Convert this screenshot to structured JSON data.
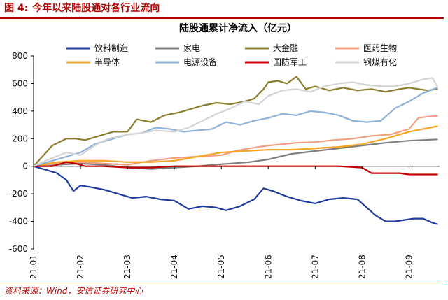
{
  "header": {
    "figure_number": "图 4:",
    "figure_title": "今年以来陆股通对各行业流向"
  },
  "source": "资料来源：Wind，安信证券研究中心",
  "colors": {
    "accent": "#b30000"
  },
  "chart_data": {
    "type": "line",
    "title": "陆股通累计净流入（亿元）",
    "ylim": [
      -600,
      800
    ],
    "yticks": [
      -600,
      -400,
      -200,
      0,
      200,
      400,
      600,
      800
    ],
    "xlim": [
      0,
      8.65
    ],
    "xticks": [
      {
        "label": "21-01",
        "pos": 0
      },
      {
        "label": "21-02",
        "pos": 1
      },
      {
        "label": "21-03",
        "pos": 2
      },
      {
        "label": "21-04",
        "pos": 3
      },
      {
        "label": "21-05",
        "pos": 4
      },
      {
        "label": "21-06",
        "pos": 5
      },
      {
        "label": "21-07",
        "pos": 6
      },
      {
        "label": "21-08",
        "pos": 7
      },
      {
        "label": "21-09",
        "pos": 8
      }
    ],
    "series": [
      {
        "name": "饮料制造",
        "color": "#1f3c9e",
        "x": [
          0,
          0.3,
          0.5,
          0.7,
          0.85,
          1.0,
          1.2,
          1.5,
          1.8,
          2.1,
          2.4,
          2.7,
          3.0,
          3.3,
          3.6,
          3.9,
          4.1,
          4.4,
          4.7,
          4.9,
          5.1,
          5.4,
          5.7,
          6.0,
          6.3,
          6.6,
          6.9,
          7.1,
          7.3,
          7.5,
          7.7,
          7.9,
          8.1,
          8.3,
          8.5,
          8.6
        ],
        "values": [
          0,
          -30,
          -50,
          -100,
          -180,
          -140,
          -150,
          -170,
          -200,
          -230,
          -220,
          -240,
          -250,
          -310,
          -290,
          -300,
          -320,
          -290,
          -240,
          -160,
          -180,
          -220,
          -250,
          -270,
          -240,
          -230,
          -240,
          -300,
          -360,
          -400,
          -400,
          -390,
          -380,
          -380,
          -410,
          -420
        ]
      },
      {
        "name": "家电",
        "color": "#7f7f7f",
        "x": [
          0,
          0.5,
          1.0,
          1.5,
          2.0,
          2.5,
          3.0,
          3.5,
          3.8,
          4.2,
          4.6,
          5.0,
          5.5,
          6.0,
          6.5,
          7.0,
          7.5,
          8.0,
          8.3,
          8.6
        ],
        "values": [
          0,
          10,
          20,
          10,
          -10,
          -20,
          -10,
          0,
          10,
          20,
          30,
          50,
          90,
          110,
          130,
          150,
          170,
          185,
          190,
          195
        ]
      },
      {
        "name": "大金融",
        "color": "#8a7f2e",
        "x": [
          0,
          0.4,
          0.7,
          0.9,
          1.1,
          1.4,
          1.7,
          2.0,
          2.2,
          2.5,
          2.8,
          3.1,
          3.4,
          3.6,
          3.9,
          4.2,
          4.5,
          4.7,
          4.9,
          5.0,
          5.2,
          5.4,
          5.6,
          5.8,
          6.0,
          6.3,
          6.6,
          6.9,
          7.2,
          7.5,
          7.8,
          8.0,
          8.2,
          8.4,
          8.6
        ],
        "values": [
          0,
          150,
          200,
          200,
          190,
          220,
          250,
          250,
          340,
          320,
          370,
          390,
          420,
          440,
          460,
          450,
          470,
          490,
          560,
          610,
          620,
          600,
          650,
          560,
          580,
          550,
          570,
          550,
          560,
          540,
          560,
          570,
          560,
          550,
          560
        ]
      },
      {
        "name": "医药生物",
        "color": "#f0a080",
        "x": [
          0,
          0.5,
          1.0,
          1.5,
          2.0,
          2.5,
          3.0,
          3.5,
          4.0,
          4.3,
          4.6,
          5.0,
          5.3,
          5.6,
          6.0,
          6.4,
          6.8,
          7.2,
          7.6,
          8.0,
          8.2,
          8.4,
          8.6
        ],
        "values": [
          0,
          20,
          30,
          20,
          10,
          40,
          60,
          70,
          80,
          110,
          130,
          150,
          160,
          170,
          175,
          190,
          200,
          220,
          230,
          270,
          350,
          360,
          365
        ]
      },
      {
        "name": "半导体",
        "color": "#f5a623",
        "x": [
          0,
          0.5,
          1.0,
          1.5,
          2.0,
          2.5,
          3.0,
          3.5,
          4.0,
          4.5,
          5.0,
          5.5,
          6.0,
          6.5,
          7.0,
          7.5,
          8.0,
          8.3,
          8.6
        ],
        "values": [
          0,
          30,
          40,
          40,
          30,
          30,
          40,
          70,
          100,
          110,
          120,
          120,
          130,
          140,
          160,
          200,
          250,
          270,
          290
        ]
      },
      {
        "name": "电源设备",
        "color": "#8fb3d9",
        "x": [
          0,
          0.5,
          1.0,
          1.3,
          1.6,
          2.0,
          2.3,
          2.6,
          2.9,
          3.2,
          3.5,
          3.8,
          4.1,
          4.4,
          4.7,
          5.0,
          5.3,
          5.6,
          5.9,
          6.2,
          6.5,
          6.8,
          7.1,
          7.4,
          7.7,
          8.0,
          8.3,
          8.6
        ],
        "values": [
          0,
          50,
          100,
          160,
          190,
          230,
          240,
          280,
          270,
          250,
          260,
          270,
          320,
          300,
          330,
          350,
          380,
          370,
          400,
          390,
          370,
          330,
          320,
          330,
          420,
          470,
          530,
          570
        ]
      },
      {
        "name": "国防军工",
        "color": "#c00000",
        "x": [
          0,
          0.4,
          0.7,
          0.9,
          1.1,
          1.5,
          2.0,
          2.5,
          3.0,
          3.5,
          4.0,
          4.5,
          5.0,
          5.5,
          6.0,
          6.5,
          7.0,
          7.2,
          7.5,
          7.8,
          8.0,
          8.3,
          8.6
        ],
        "values": [
          0,
          0,
          30,
          20,
          0,
          0,
          -10,
          -10,
          0,
          0,
          0,
          0,
          0,
          0,
          0,
          0,
          -10,
          -50,
          -50,
          -50,
          -60,
          -60,
          -60
        ]
      },
      {
        "name": "钢煤有化",
        "color": "#d4d4d4",
        "x": [
          0,
          0.4,
          0.7,
          1.0,
          1.3,
          1.6,
          2.0,
          2.3,
          2.6,
          3.0,
          3.3,
          3.6,
          3.9,
          4.2,
          4.5,
          4.8,
          5.0,
          5.3,
          5.6,
          5.9,
          6.2,
          6.5,
          6.8,
          7.1,
          7.4,
          7.7,
          8.0,
          8.3,
          8.5,
          8.6
        ],
        "values": [
          0,
          60,
          100,
          80,
          150,
          200,
          230,
          240,
          260,
          250,
          280,
          330,
          380,
          420,
          470,
          450,
          510,
          550,
          560,
          540,
          580,
          600,
          610,
          590,
          580,
          580,
          600,
          630,
          640,
          580
        ]
      }
    ]
  }
}
